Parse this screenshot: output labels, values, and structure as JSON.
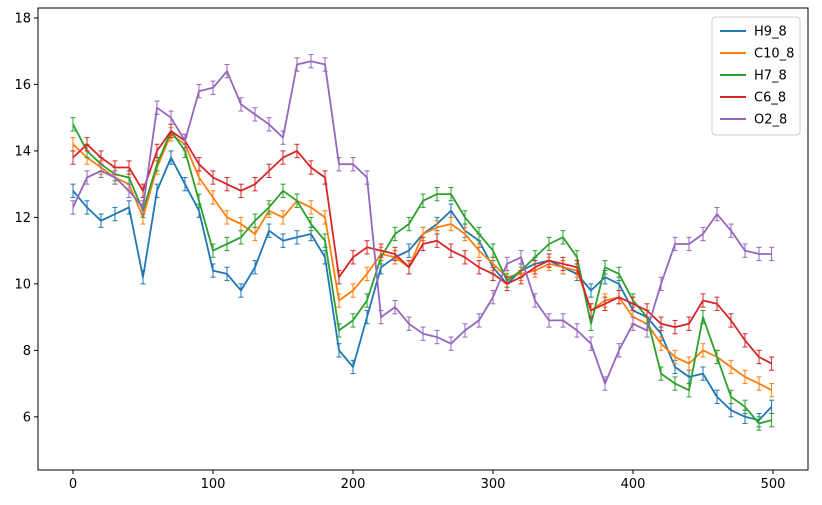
{
  "chart_data": {
    "type": "line",
    "title": "",
    "xlabel": "",
    "ylabel": "",
    "xlim": [
      -25,
      525
    ],
    "ylim": [
      4.4,
      18.3
    ],
    "x_ticks": [
      0,
      100,
      200,
      300,
      400,
      500
    ],
    "y_ticks": [
      6,
      8,
      10,
      12,
      14,
      16,
      18
    ],
    "x_tick_labels": [
      "0",
      "100",
      "200",
      "300",
      "400",
      "500"
    ],
    "y_tick_labels": [
      "6",
      "8",
      "10",
      "12",
      "14",
      "16",
      "18"
    ],
    "grid": false,
    "legend_position": "top-right",
    "error_bars": true,
    "x": [
      0,
      10,
      20,
      30,
      40,
      50,
      60,
      70,
      80,
      90,
      100,
      110,
      120,
      130,
      140,
      150,
      160,
      170,
      180,
      190,
      200,
      210,
      220,
      230,
      240,
      250,
      260,
      270,
      280,
      290,
      300,
      310,
      320,
      330,
      340,
      350,
      360,
      370,
      380,
      390,
      400,
      410,
      420,
      430,
      440,
      450,
      460,
      470,
      480,
      490,
      499
    ],
    "series": [
      {
        "name": "H9_8",
        "color": "#1f77b4",
        "values": [
          12.8,
          12.3,
          11.9,
          12.1,
          12.3,
          10.2,
          12.8,
          13.8,
          13.0,
          12.2,
          10.4,
          10.3,
          9.8,
          10.5,
          11.6,
          11.3,
          11.4,
          11.5,
          10.8,
          8.0,
          7.5,
          9.0,
          10.5,
          10.8,
          11.0,
          11.5,
          11.8,
          12.2,
          11.6,
          11.3,
          10.5,
          10.0,
          10.4,
          10.6,
          10.7,
          10.5,
          10.3,
          9.8,
          10.2,
          10.0,
          9.2,
          9.0,
          8.5,
          7.5,
          7.2,
          7.3,
          6.6,
          6.2,
          6.0,
          5.9,
          6.3
        ],
        "errors": [
          0.2,
          0.2,
          0.2,
          0.2,
          0.2,
          0.2,
          0.2,
          0.2,
          0.2,
          0.2,
          0.2,
          0.2,
          0.2,
          0.2,
          0.2,
          0.2,
          0.2,
          0.2,
          0.2,
          0.2,
          0.2,
          0.2,
          0.2,
          0.2,
          0.2,
          0.2,
          0.2,
          0.2,
          0.2,
          0.2,
          0.2,
          0.2,
          0.2,
          0.2,
          0.2,
          0.2,
          0.2,
          0.2,
          0.2,
          0.2,
          0.2,
          0.2,
          0.2,
          0.2,
          0.2,
          0.2,
          0.2,
          0.2,
          0.2,
          0.2,
          0.2
        ]
      },
      {
        "name": "C10_8",
        "color": "#ff7f0e",
        "values": [
          14.2,
          13.8,
          13.5,
          13.2,
          13.0,
          12.0,
          13.5,
          14.5,
          14.2,
          13.2,
          12.6,
          12.0,
          11.8,
          11.5,
          12.2,
          12.0,
          12.5,
          12.3,
          12.0,
          9.5,
          9.8,
          10.3,
          10.9,
          10.8,
          10.5,
          11.5,
          11.7,
          11.8,
          11.5,
          11.0,
          10.6,
          10.2,
          10.3,
          10.4,
          10.6,
          10.5,
          10.4,
          9.2,
          9.5,
          9.6,
          9.0,
          8.8,
          8.2,
          7.8,
          7.6,
          8.0,
          7.8,
          7.5,
          7.2,
          7.0,
          6.8
        ],
        "errors": [
          0.2,
          0.2,
          0.2,
          0.2,
          0.2,
          0.2,
          0.2,
          0.2,
          0.2,
          0.2,
          0.2,
          0.2,
          0.2,
          0.2,
          0.2,
          0.2,
          0.2,
          0.2,
          0.2,
          0.2,
          0.2,
          0.2,
          0.2,
          0.2,
          0.2,
          0.2,
          0.2,
          0.2,
          0.2,
          0.2,
          0.2,
          0.2,
          0.2,
          0.2,
          0.2,
          0.2,
          0.2,
          0.2,
          0.2,
          0.2,
          0.2,
          0.2,
          0.2,
          0.2,
          0.2,
          0.2,
          0.2,
          0.2,
          0.2,
          0.2,
          0.2
        ]
      },
      {
        "name": "H7_8",
        "color": "#2ca02c",
        "values": [
          14.8,
          14.0,
          13.6,
          13.3,
          13.2,
          12.2,
          13.6,
          14.6,
          14.0,
          12.5,
          11.0,
          11.2,
          11.4,
          11.9,
          12.3,
          12.8,
          12.5,
          11.8,
          11.3,
          8.6,
          8.9,
          9.5,
          10.8,
          11.5,
          11.8,
          12.5,
          12.7,
          12.7,
          12.0,
          11.5,
          11.0,
          10.1,
          10.4,
          10.8,
          11.2,
          11.4,
          10.8,
          8.8,
          10.5,
          10.3,
          9.5,
          9.0,
          7.3,
          7.0,
          6.8,
          9.0,
          7.8,
          6.6,
          6.3,
          5.8,
          5.9
        ],
        "errors": [
          0.2,
          0.2,
          0.2,
          0.2,
          0.2,
          0.2,
          0.2,
          0.2,
          0.2,
          0.2,
          0.2,
          0.2,
          0.2,
          0.2,
          0.2,
          0.2,
          0.2,
          0.2,
          0.2,
          0.2,
          0.2,
          0.2,
          0.2,
          0.2,
          0.2,
          0.2,
          0.2,
          0.2,
          0.2,
          0.2,
          0.2,
          0.2,
          0.2,
          0.2,
          0.2,
          0.2,
          0.2,
          0.2,
          0.2,
          0.2,
          0.2,
          0.2,
          0.2,
          0.2,
          0.2,
          0.2,
          0.2,
          0.2,
          0.2,
          0.2,
          0.2
        ]
      },
      {
        "name": "C6_8",
        "color": "#d62728",
        "values": [
          13.8,
          14.2,
          13.8,
          13.5,
          13.5,
          12.8,
          14.0,
          14.6,
          14.3,
          13.6,
          13.2,
          13.0,
          12.8,
          13.0,
          13.4,
          13.8,
          14.0,
          13.5,
          13.2,
          10.2,
          10.8,
          11.1,
          11.0,
          10.9,
          10.5,
          11.2,
          11.3,
          11.0,
          10.8,
          10.5,
          10.3,
          10.0,
          10.2,
          10.5,
          10.7,
          10.6,
          10.5,
          9.2,
          9.4,
          9.6,
          9.4,
          9.2,
          8.8,
          8.7,
          8.8,
          9.5,
          9.4,
          8.9,
          8.3,
          7.8,
          7.6
        ],
        "errors": [
          0.2,
          0.2,
          0.2,
          0.2,
          0.2,
          0.2,
          0.2,
          0.2,
          0.2,
          0.2,
          0.2,
          0.2,
          0.2,
          0.2,
          0.2,
          0.2,
          0.2,
          0.2,
          0.2,
          0.2,
          0.2,
          0.2,
          0.2,
          0.2,
          0.2,
          0.2,
          0.2,
          0.2,
          0.2,
          0.2,
          0.2,
          0.2,
          0.2,
          0.2,
          0.2,
          0.2,
          0.2,
          0.2,
          0.2,
          0.2,
          0.2,
          0.2,
          0.2,
          0.2,
          0.2,
          0.2,
          0.2,
          0.2,
          0.2,
          0.2,
          0.2
        ]
      },
      {
        "name": "O2_8",
        "color": "#9467bd",
        "values": [
          12.3,
          13.2,
          13.4,
          13.2,
          12.8,
          12.3,
          15.3,
          15.0,
          14.3,
          15.8,
          15.9,
          16.4,
          15.4,
          15.1,
          14.8,
          14.4,
          16.6,
          16.7,
          16.6,
          13.6,
          13.6,
          13.2,
          9.0,
          9.3,
          8.8,
          8.5,
          8.4,
          8.2,
          8.6,
          8.9,
          9.6,
          10.6,
          10.8,
          9.5,
          8.9,
          8.9,
          8.6,
          8.2,
          7.0,
          8.0,
          8.8,
          8.6,
          10.0,
          11.2,
          11.2,
          11.5,
          12.1,
          11.6,
          11.0,
          10.9,
          10.9
        ],
        "errors": [
          0.2,
          0.2,
          0.2,
          0.2,
          0.2,
          0.2,
          0.2,
          0.2,
          0.2,
          0.2,
          0.2,
          0.2,
          0.2,
          0.2,
          0.2,
          0.2,
          0.2,
          0.2,
          0.2,
          0.2,
          0.2,
          0.2,
          0.2,
          0.2,
          0.2,
          0.2,
          0.2,
          0.2,
          0.2,
          0.2,
          0.2,
          0.2,
          0.2,
          0.2,
          0.2,
          0.2,
          0.2,
          0.2,
          0.2,
          0.2,
          0.2,
          0.2,
          0.2,
          0.2,
          0.2,
          0.2,
          0.2,
          0.2,
          0.2,
          0.2,
          0.2
        ]
      }
    ]
  }
}
